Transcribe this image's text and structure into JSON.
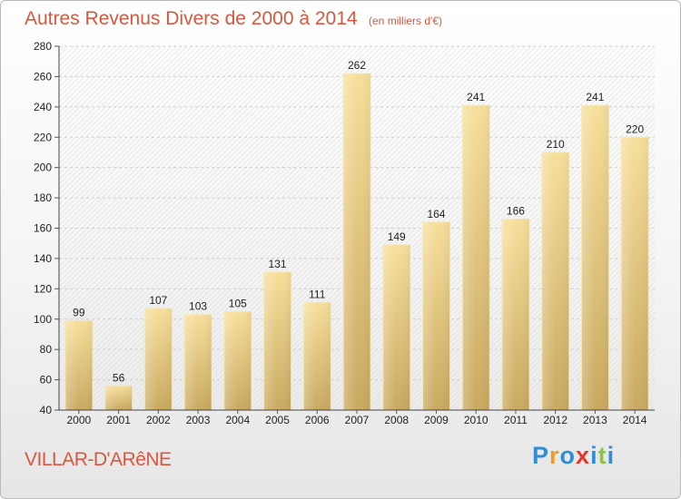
{
  "title": "Autres Revenus Divers de 2000 à 2014",
  "subtitle": "(en milliers d'€)",
  "commune": "VILLAR-D'ARêNE",
  "logo": {
    "letters": [
      "P",
      "r",
      "o",
      "x",
      "i",
      "t",
      "i"
    ],
    "colors": [
      "#2e8fd6",
      "#f29a1f",
      "#2e8fd6",
      "#e23a2a",
      "#2e8fd6",
      "#8cc63f",
      "#2e8fd6"
    ]
  },
  "chart_data": {
    "type": "bar",
    "title": "Autres Revenus Divers de 2000 à 2014",
    "subtitle": "(en milliers d'€)",
    "categories": [
      "2000",
      "2001",
      "2002",
      "2003",
      "2004",
      "2005",
      "2006",
      "2007",
      "2008",
      "2009",
      "2010",
      "2011",
      "2012",
      "2013",
      "2014"
    ],
    "values": [
      99,
      56,
      107,
      103,
      105,
      131,
      111,
      262,
      149,
      164,
      241,
      166,
      210,
      241,
      220
    ],
    "ylim": [
      40,
      280
    ],
    "yticks": [
      40,
      60,
      80,
      100,
      120,
      140,
      160,
      180,
      200,
      220,
      240,
      260,
      280
    ],
    "grid": true,
    "bar_color": "#e8c97a"
  }
}
